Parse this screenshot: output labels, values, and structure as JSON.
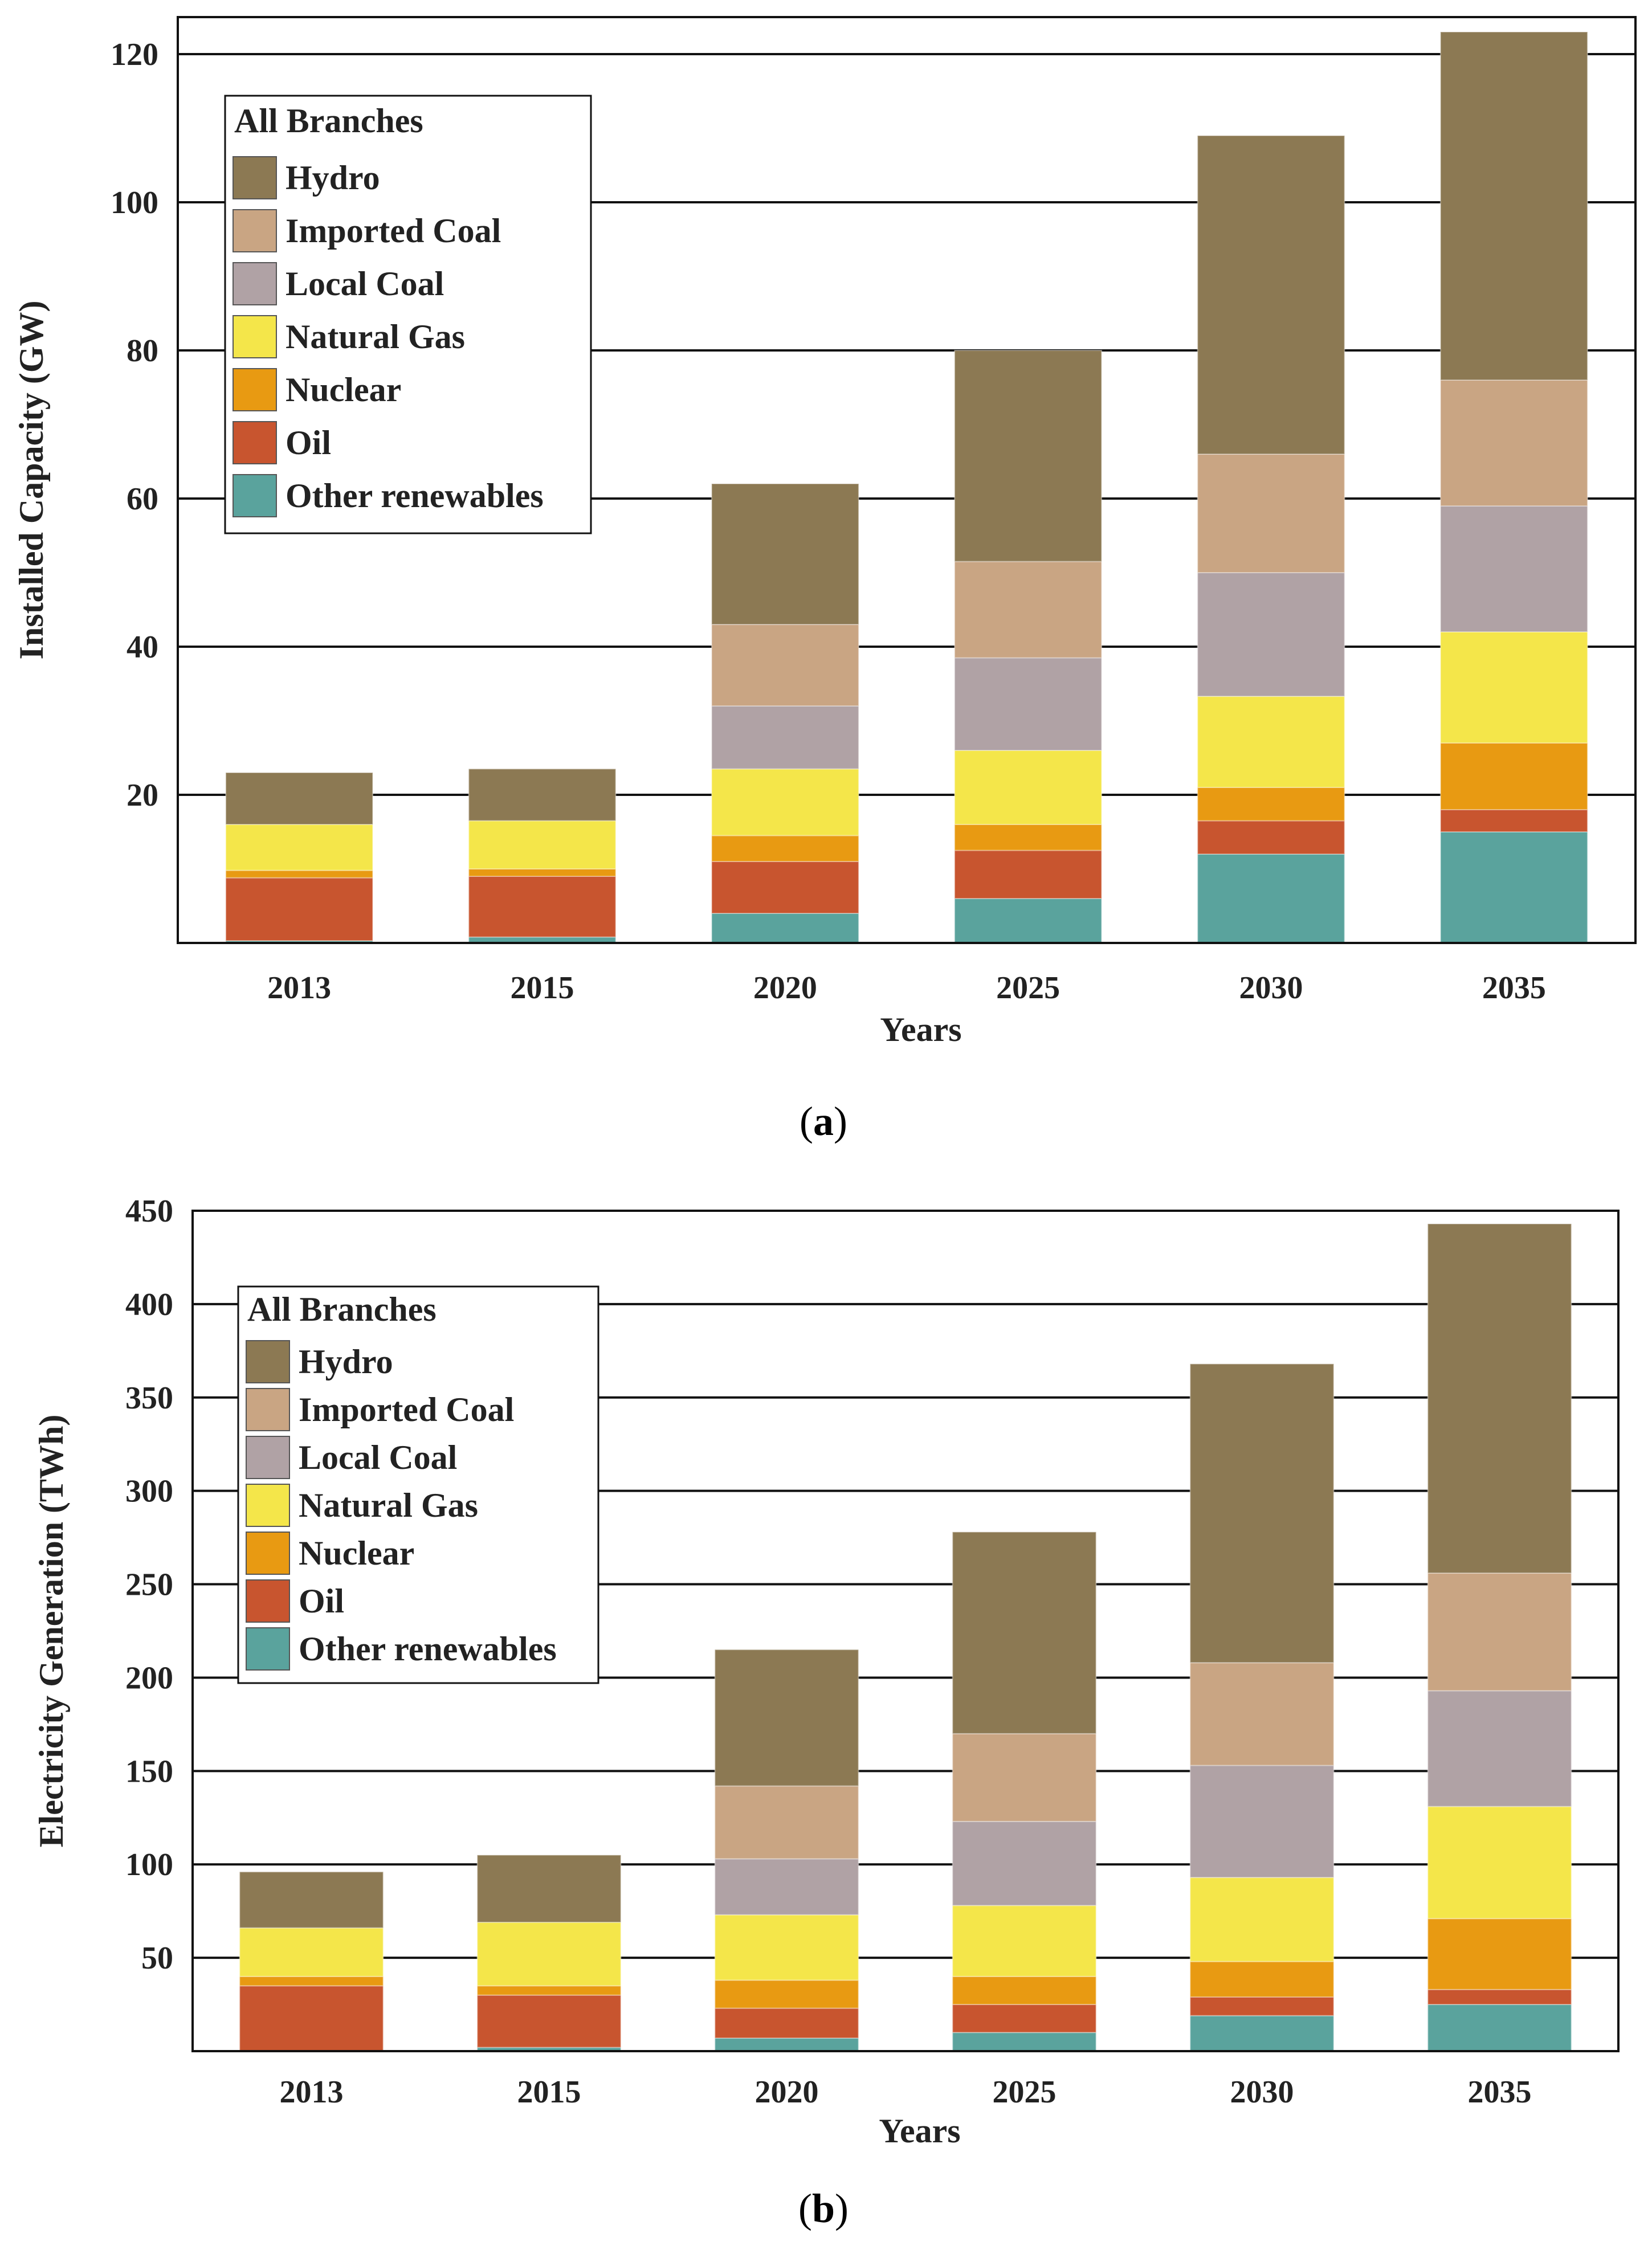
{
  "chart_data": [
    {
      "id": "a",
      "type": "bar",
      "stacked": true,
      "caption": "(a)",
      "caption_letter": "a",
      "xlabel": "Years",
      "ylabel": "Installed Capacity (GW)",
      "ylim": [
        0,
        125
      ],
      "yticks": [
        20,
        40,
        60,
        80,
        100,
        120
      ],
      "grid": true,
      "legend_title": "All Branches",
      "legend_position": "top-left",
      "categories": [
        "2013",
        "2015",
        "2020",
        "2025",
        "2030",
        "2035"
      ],
      "series": [
        {
          "name": "Other renewables",
          "color": "#5aa39d",
          "values": [
            0.3,
            0.8,
            4.0,
            6.0,
            12.0,
            15.0
          ]
        },
        {
          "name": "Oil",
          "color": "#c8552f",
          "values": [
            8.5,
            8.2,
            7.0,
            6.5,
            4.5,
            3.0
          ]
        },
        {
          "name": "Nuclear",
          "color": "#e89a12",
          "values": [
            1.0,
            1.0,
            3.5,
            3.5,
            4.5,
            9.0
          ]
        },
        {
          "name": "Natural Gas",
          "color": "#f4e64a",
          "values": [
            6.2,
            6.5,
            9.0,
            10.0,
            12.3,
            15.0
          ]
        },
        {
          "name": "Local Coal",
          "color": "#b0a2a5",
          "values": [
            0.0,
            0.0,
            8.5,
            12.5,
            16.7,
            17.0
          ]
        },
        {
          "name": "Imported Coal",
          "color": "#c9a583",
          "values": [
            0.0,
            0.0,
            11.0,
            13.0,
            16.0,
            17.0
          ]
        },
        {
          "name": "Hydro",
          "color": "#8c7953",
          "values": [
            7.0,
            7.0,
            19.0,
            28.5,
            43.0,
            47.0
          ]
        }
      ]
    },
    {
      "id": "b",
      "type": "bar",
      "stacked": true,
      "caption": "(b)",
      "caption_letter": "b",
      "xlabel": "Years",
      "ylabel": "Electricity Generation (TWh)",
      "ylim": [
        0,
        450
      ],
      "yticks": [
        50,
        100,
        150,
        200,
        250,
        300,
        350,
        400,
        450
      ],
      "grid": true,
      "legend_title": "All Branches",
      "legend_position": "top-left",
      "categories": [
        "2013",
        "2015",
        "2020",
        "2025",
        "2030",
        "2035"
      ],
      "series": [
        {
          "name": "Other renewables",
          "color": "#5aa39d",
          "values": [
            0,
            2,
            7,
            10,
            19,
            25
          ]
        },
        {
          "name": "Oil",
          "color": "#c8552f",
          "values": [
            35,
            28,
            16,
            15,
            10,
            8
          ]
        },
        {
          "name": "Nuclear",
          "color": "#e89a12",
          "values": [
            5,
            5,
            15,
            15,
            19,
            38
          ]
        },
        {
          "name": "Natural Gas",
          "color": "#f4e64a",
          "values": [
            26,
            34,
            35,
            38,
            45,
            60
          ]
        },
        {
          "name": "Local Coal",
          "color": "#b0a2a5",
          "values": [
            0,
            0,
            30,
            45,
            60,
            62
          ]
        },
        {
          "name": "Imported Coal",
          "color": "#c9a583",
          "values": [
            0,
            0,
            39,
            47,
            55,
            63
          ]
        },
        {
          "name": "Hydro",
          "color": "#8c7953",
          "values": [
            30,
            36,
            73,
            108,
            160,
            187
          ]
        }
      ]
    }
  ]
}
